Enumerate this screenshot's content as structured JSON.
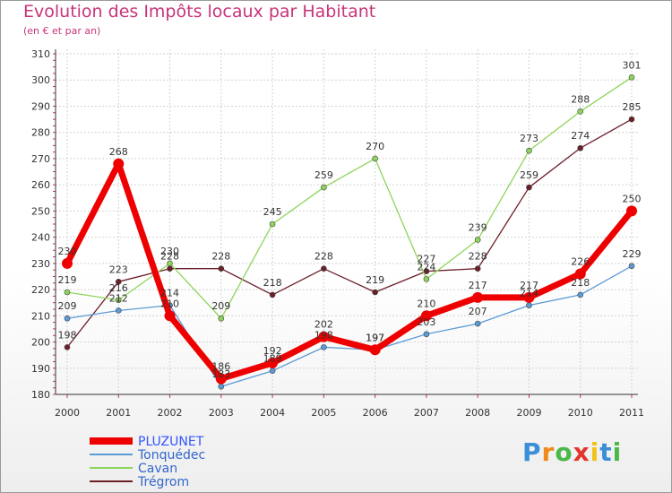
{
  "chart_data": {
    "type": "line",
    "title": "Evolution des Impôts locaux par Habitant",
    "subtitle": "(en € et par an)",
    "xlabel": "",
    "ylabel": "",
    "x": [
      "2000",
      "2001",
      "2002",
      "2003",
      "2004",
      "2005",
      "2006",
      "2007",
      "2008",
      "2009",
      "2010",
      "2011"
    ],
    "ylim": [
      180,
      310
    ],
    "yticks": [
      180,
      190,
      200,
      210,
      220,
      230,
      240,
      250,
      260,
      270,
      280,
      290,
      300,
      310
    ],
    "grid": true,
    "legend_position": "bottom-left",
    "series": [
      {
        "name": "PLUZUNET",
        "color": "#ee0000",
        "values": [
          230,
          268,
          210,
          186,
          192,
          202,
          197,
          210,
          217,
          217,
          226,
          250
        ]
      },
      {
        "name": "Tonquédec",
        "color": "#5b9bd5",
        "values": [
          209,
          212,
          214,
          183,
          189,
          198,
          197,
          203,
          207,
          214,
          218,
          229
        ]
      },
      {
        "name": "Cavan",
        "color": "#8ed45a",
        "values": [
          219,
          216,
          230,
          209,
          245,
          259,
          270,
          224,
          239,
          273,
          288,
          301
        ]
      },
      {
        "name": "Trégrom",
        "color": "#6b1f28",
        "values": [
          198,
          223,
          228,
          228,
          218,
          228,
          219,
          227,
          228,
          259,
          274,
          285
        ]
      }
    ]
  },
  "branding": {
    "letters": [
      "P",
      "r",
      "o",
      "x",
      "i",
      "t",
      "i"
    ],
    "colors": [
      "#3b8fd8",
      "#f08a1c",
      "#4cb848",
      "#e3352c",
      "#f2c21a",
      "#3b8fd8",
      "#4cb848"
    ]
  }
}
